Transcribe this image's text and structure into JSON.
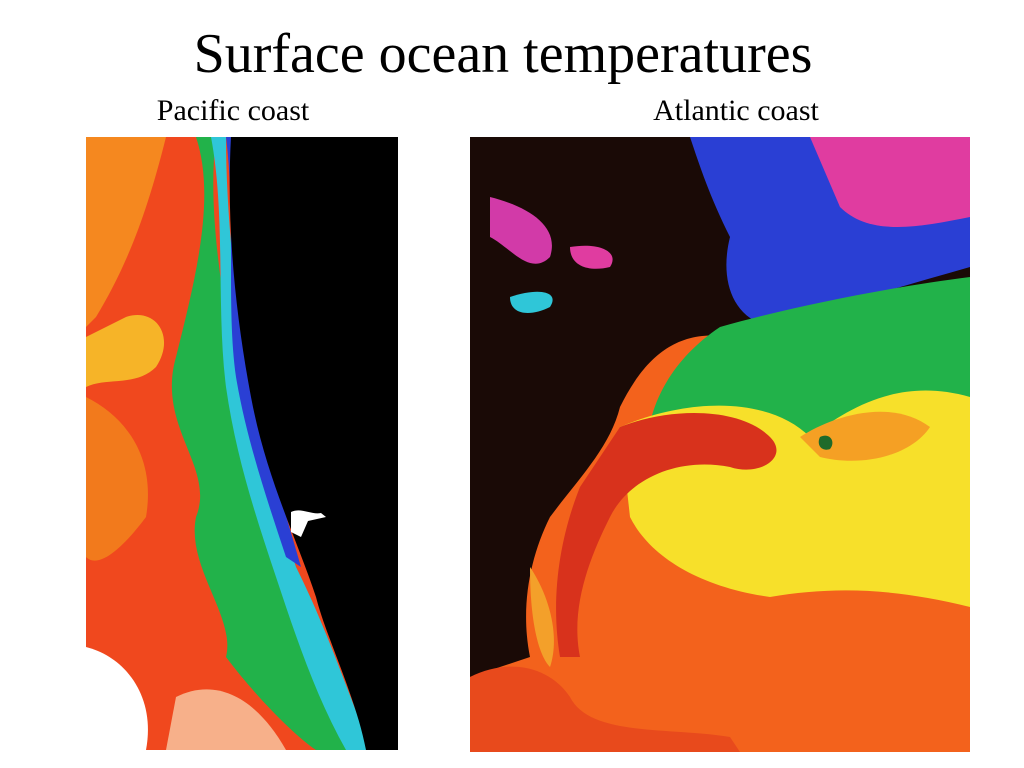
{
  "slide": {
    "title": "Surface ocean temperatures",
    "captions": [
      "Pacific coast",
      "Atlantic coast"
    ]
  }
}
